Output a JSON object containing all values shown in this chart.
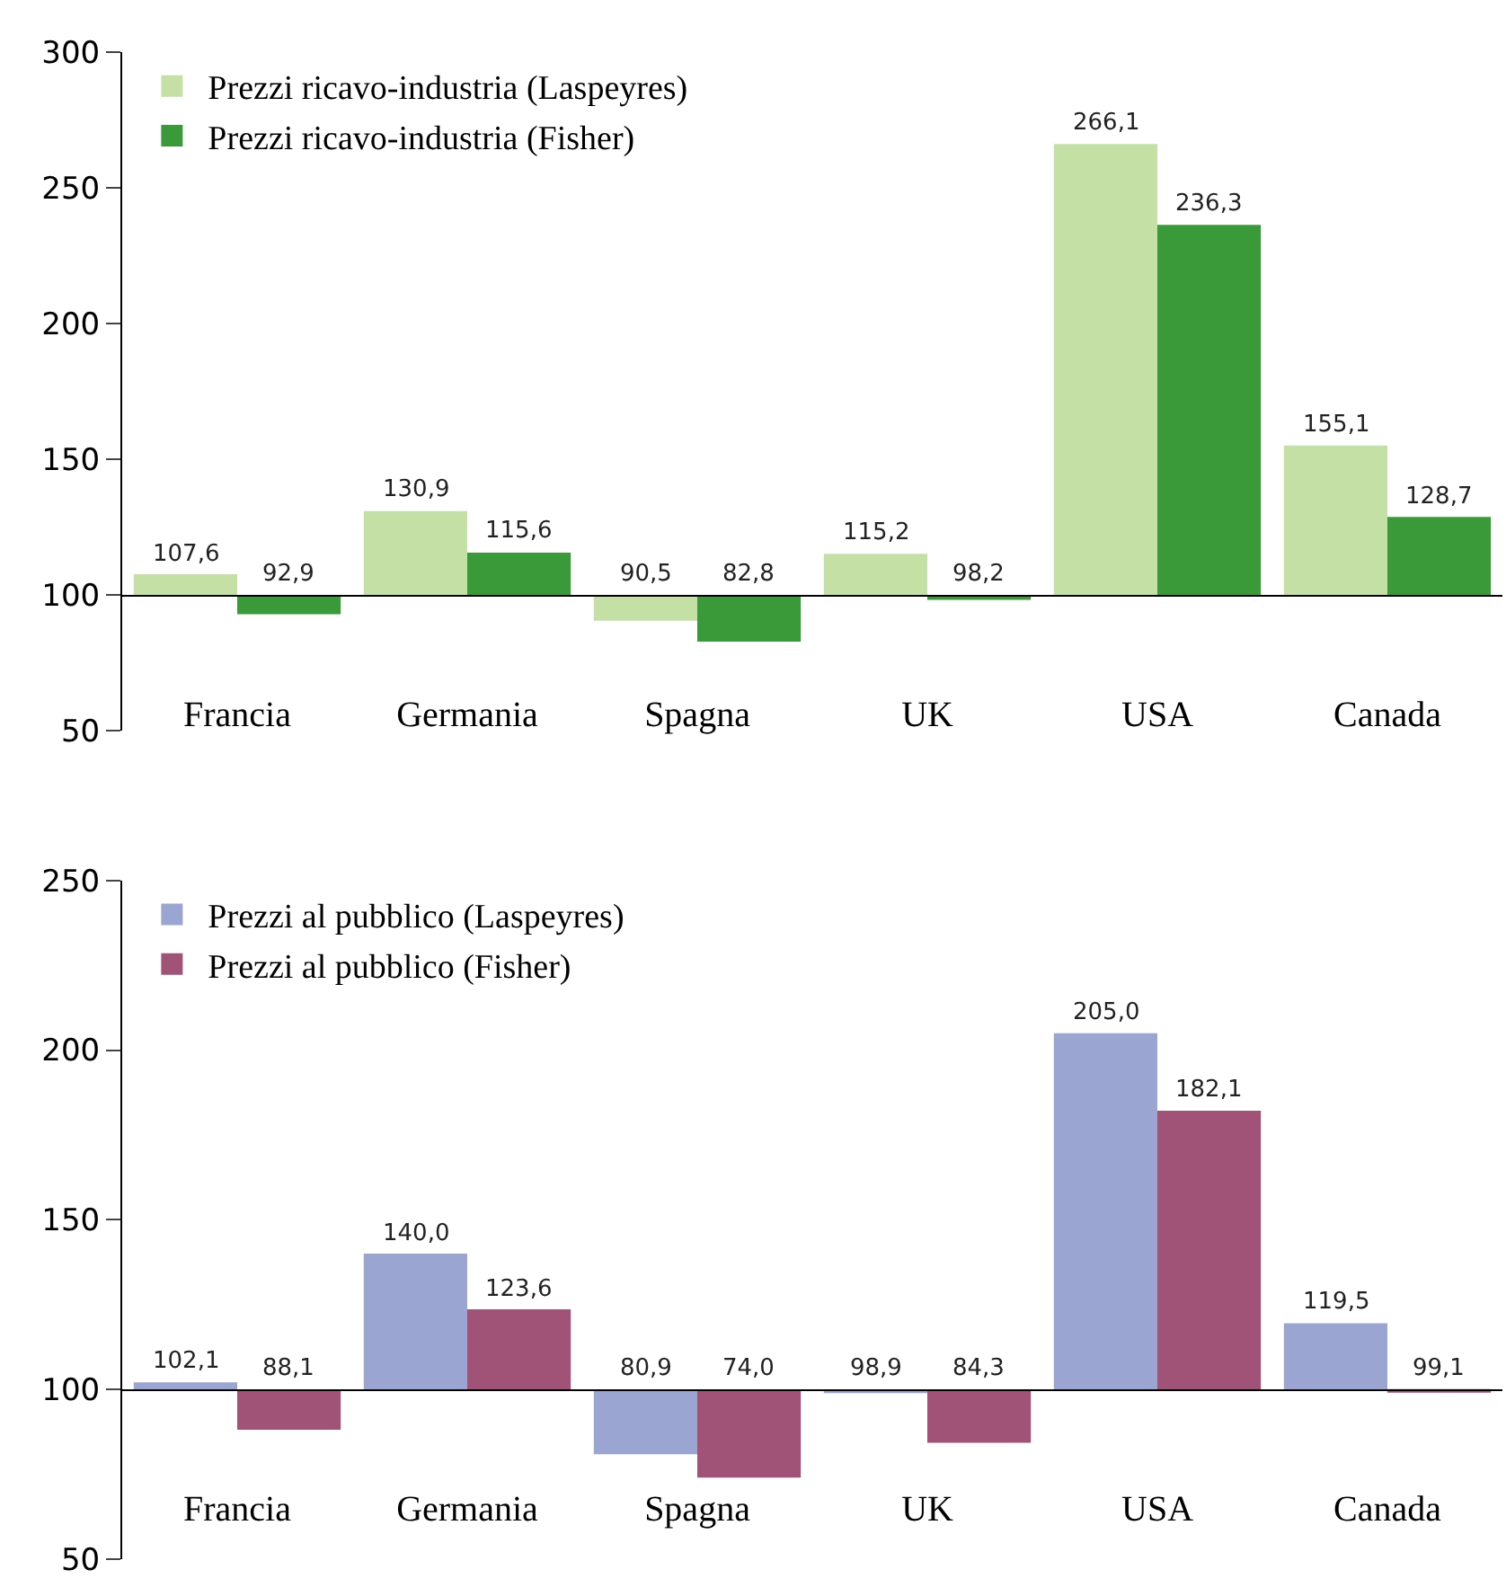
{
  "chart_data": [
    {
      "type": "bar",
      "categories": [
        "Francia",
        "Germania",
        "Spagna",
        "UK",
        "USA",
        "Canada"
      ],
      "ylim": [
        50,
        300
      ],
      "yticks": [
        50,
        100,
        150,
        200,
        250,
        300
      ],
      "legend": "top left",
      "series": [
        {
          "name": "Prezzi ricavo-industria (Laspeyres)",
          "color": "#c5e0a5",
          "base": [
            100,
            100,
            100,
            100,
            100,
            100
          ],
          "values": [
            7.6,
            30.9,
            -9.5,
            15.2,
            166.1,
            55.1
          ],
          "value_labels": [
            "107,6",
            "130,9",
            "90,5",
            "115,2",
            "266,1",
            "155,1"
          ]
        },
        {
          "name": "Prezzi ricavo-industria (Fisher)",
          "color": "#3a9a3a",
          "base": [
            100,
            100,
            100,
            100,
            100,
            100
          ],
          "values": [
            -7.1,
            15.6,
            -17.2,
            -1.8,
            136.3,
            28.7
          ],
          "value_labels": [
            "92,9",
            "115,6",
            "82,8",
            "98,2",
            "236,3",
            "128,7"
          ]
        }
      ]
    },
    {
      "type": "bar",
      "categories": [
        "Francia",
        "Germania",
        "Spagna",
        "UK",
        "USA",
        "Canada"
      ],
      "ylim": [
        50,
        250
      ],
      "yticks": [
        50,
        100,
        150,
        200,
        250
      ],
      "legend": "top left",
      "series": [
        {
          "name": "Prezzi al pubblico (Laspeyres)",
          "color": "#9aa5d2",
          "base": [
            100,
            100,
            100,
            100,
            100,
            100
          ],
          "values": [
            2.1,
            40.0,
            -19.1,
            -1.1,
            105.0,
            19.5
          ],
          "value_labels": [
            "102,1",
            "140,0",
            "80,9",
            "98,9",
            "205,0",
            "119,5"
          ]
        },
        {
          "name": "Prezzi al pubblico (Fisher)",
          "color": "#a05277",
          "base": [
            100,
            100,
            100,
            100,
            100,
            100
          ],
          "values": [
            -11.9,
            23.6,
            -26.0,
            -15.7,
            82.1,
            -0.9
          ],
          "value_labels": [
            "88,1",
            "123,6",
            "74,0",
            "84,3",
            "182,1",
            "99,1"
          ]
        }
      ]
    }
  ]
}
